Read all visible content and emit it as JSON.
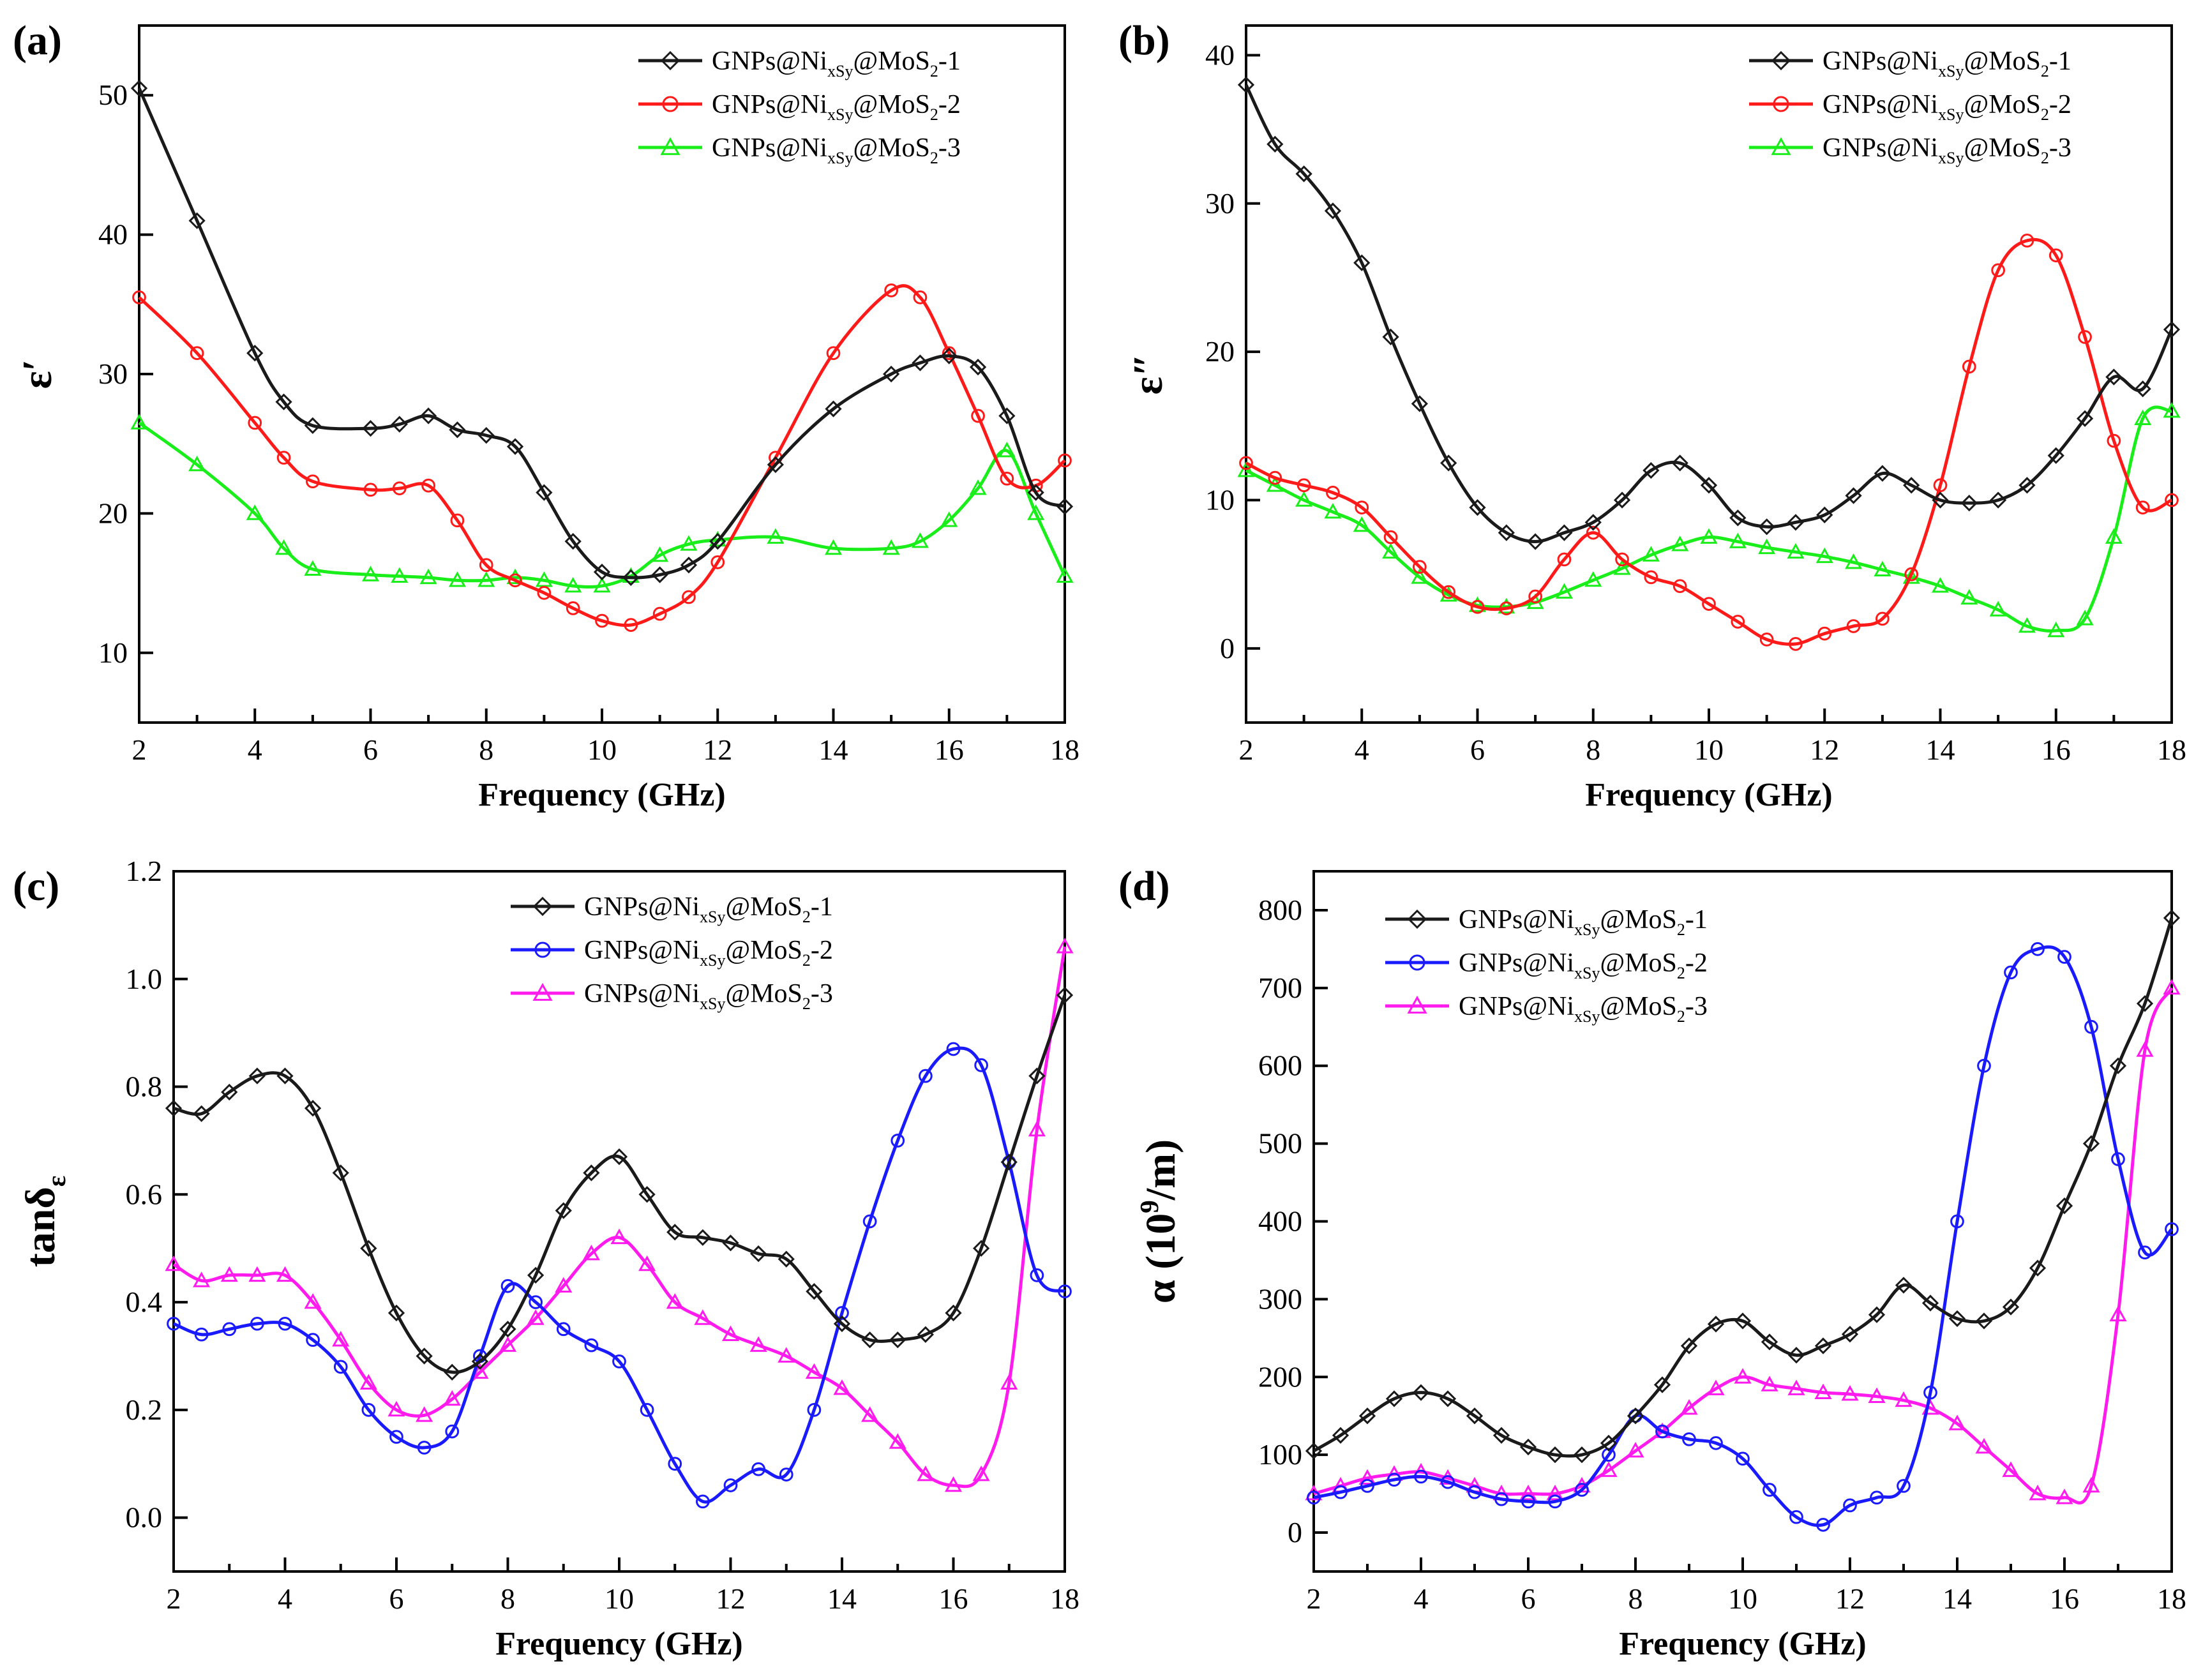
{
  "figure": {
    "panels": [
      {
        "id": "a",
        "label": "(a)",
        "ylabel": "ε′",
        "xlabel": "Frequency (GHz)",
        "legend": [
          "GNPs@Ni_xS_y@MoS_2-1",
          "GNPs@Ni_xS_y@MoS_2-2",
          "GNPs@Ni_xS_y@MoS_2-3"
        ],
        "colors": [
          "#1a1a1a",
          "#ff1a1a",
          "#1aee1a"
        ],
        "markers": [
          "diamond",
          "circle",
          "triangle"
        ]
      },
      {
        "id": "b",
        "label": "(b)",
        "ylabel": "ε″",
        "xlabel": "Frequency (GHz)",
        "legend": [
          "GNPs@Ni_xS_y@MoS_2-1",
          "GNPs@Ni_xS_y@MoS_2-2",
          "GNPs@Ni_xS_y@MoS_2-3"
        ],
        "colors": [
          "#1a1a1a",
          "#ff1a1a",
          "#1aee1a"
        ],
        "markers": [
          "diamond",
          "circle",
          "triangle"
        ]
      },
      {
        "id": "c",
        "label": "(c)",
        "ylabel": "tanδ_ε",
        "xlabel": "Frequency (GHz)",
        "legend": [
          "GNPs@Ni_xS_y@MoS_2-1",
          "GNPs@Ni_xS_y@MoS_2-2",
          "GNPs@Ni_xS_y@MoS_2-3"
        ],
        "colors": [
          "#1a1a1a",
          "#1a1aff",
          "#ff1aee"
        ],
        "markers": [
          "diamond",
          "circle",
          "triangle"
        ]
      },
      {
        "id": "d",
        "label": "(d)",
        "ylabel": "α (10^9/m)",
        "xlabel": "Frequency (GHz)",
        "legend": [
          "GNPs@Ni_xS_y@MoS_2-1",
          "GNPs@Ni_xS_y@MoS_2-2",
          "GNPs@Ni_xS_y@MoS_2-3"
        ],
        "colors": [
          "#1a1a1a",
          "#1a1aff",
          "#ff1aee"
        ],
        "markers": [
          "diamond",
          "circle",
          "triangle"
        ]
      }
    ]
  },
  "chart_data": [
    {
      "type": "line",
      "panel": "(a)",
      "title": "",
      "xlabel": "Frequency (GHz)",
      "ylabel": "ε′",
      "xlim": [
        2,
        18
      ],
      "ylim": [
        5,
        55
      ],
      "xticks": [
        2,
        4,
        6,
        8,
        10,
        12,
        14,
        16,
        18
      ],
      "yticks": [
        10,
        20,
        30,
        40,
        50
      ],
      "x": [
        2,
        3,
        4,
        4.5,
        5,
        6,
        6.5,
        7,
        7.5,
        8,
        8.5,
        9,
        9.5,
        10,
        10.5,
        11,
        11.5,
        12,
        13,
        14,
        15,
        15.5,
        16,
        16.5,
        17,
        17.5,
        18
      ],
      "series": [
        {
          "name": "GNPs@NixSy@MoS2-1",
          "values": [
            50.5,
            41,
            31.5,
            28,
            26.3,
            26.1,
            26.4,
            27,
            26,
            25.6,
            24.8,
            21.5,
            18,
            15.8,
            15.4,
            15.6,
            16.3,
            18,
            23.5,
            27.5,
            30,
            30.8,
            31.3,
            30.5,
            27,
            21.5,
            20.5
          ]
        },
        {
          "name": "GNPs@NixSy@MoS2-2",
          "values": [
            35.5,
            31.5,
            26.5,
            24,
            22.3,
            21.7,
            21.8,
            22,
            19.5,
            16.3,
            15.2,
            14.3,
            13.2,
            12.3,
            12,
            12.8,
            14,
            16.5,
            24,
            31.5,
            36,
            35.5,
            31.5,
            27,
            22.5,
            22,
            23.8
          ]
        },
        {
          "name": "GNPs@NixSy@MoS2-3",
          "values": [
            26.5,
            23.5,
            20,
            17.5,
            16,
            15.6,
            15.5,
            15.4,
            15.2,
            15.2,
            15.4,
            15.2,
            14.8,
            14.8,
            15.5,
            17,
            17.8,
            18.1,
            18.3,
            17.5,
            17.5,
            18,
            19.5,
            21.8,
            24.5,
            20,
            15.5
          ]
        }
      ]
    },
    {
      "type": "line",
      "panel": "(b)",
      "title": "",
      "xlabel": "Frequency (GHz)",
      "ylabel": "ε″",
      "xlim": [
        2,
        18
      ],
      "ylim": [
        -5,
        42
      ],
      "xticks": [
        2,
        4,
        6,
        8,
        10,
        12,
        14,
        16,
        18
      ],
      "yticks": [
        0,
        10,
        20,
        30,
        40
      ],
      "x": [
        2,
        2.5,
        3,
        3.5,
        4,
        4.5,
        5,
        5.5,
        6,
        6.5,
        7,
        7.5,
        8,
        8.5,
        9,
        9.5,
        10,
        10.5,
        11,
        11.5,
        12,
        12.5,
        13,
        13.5,
        14,
        14.5,
        15,
        15.5,
        16,
        16.5,
        17,
        17.5,
        18
      ],
      "series": [
        {
          "name": "GNPs@NixSy@MoS2-1",
          "values": [
            38,
            34,
            32,
            29.5,
            26,
            21,
            16.5,
            12.5,
            9.5,
            7.8,
            7.2,
            7.8,
            8.5,
            10,
            12,
            12.5,
            11,
            8.8,
            8.2,
            8.5,
            9,
            10.3,
            11.8,
            11,
            10,
            9.8,
            10,
            11,
            13,
            15.5,
            18.3,
            17.5,
            21.5
          ]
        },
        {
          "name": "GNPs@NixSy@MoS2-2",
          "values": [
            12.5,
            11.5,
            11,
            10.5,
            9.5,
            7.5,
            5.5,
            3.8,
            2.8,
            2.7,
            3.5,
            6,
            7.8,
            6,
            4.8,
            4.2,
            3,
            1.8,
            0.6,
            0.3,
            1,
            1.5,
            2,
            5,
            11,
            19,
            25.5,
            27.5,
            26.5,
            21,
            14,
            9.5,
            10
          ]
        },
        {
          "name": "GNPs@NixSy@MoS2-3",
          "values": [
            12,
            11,
            10,
            9.2,
            8.3,
            6.5,
            4.8,
            3.6,
            2.9,
            2.8,
            3.1,
            3.8,
            4.6,
            5.4,
            6.3,
            7,
            7.5,
            7.2,
            6.8,
            6.5,
            6.2,
            5.8,
            5.3,
            4.8,
            4.2,
            3.4,
            2.6,
            1.5,
            1.2,
            2,
            7.5,
            15.5,
            16
          ]
        }
      ]
    },
    {
      "type": "line",
      "panel": "(c)",
      "title": "",
      "xlabel": "Frequency (GHz)",
      "ylabel": "tanδε",
      "xlim": [
        2,
        18
      ],
      "ylim": [
        -0.1,
        1.2
      ],
      "xticks": [
        2,
        4,
        6,
        8,
        10,
        12,
        14,
        16,
        18
      ],
      "yticks": [
        0.0,
        0.2,
        0.4,
        0.6,
        0.8,
        1.0,
        1.2
      ],
      "x": [
        2,
        2.5,
        3,
        3.5,
        4,
        4.5,
        5,
        5.5,
        6,
        6.5,
        7,
        7.5,
        8,
        8.5,
        9,
        9.5,
        10,
        10.5,
        11,
        11.5,
        12,
        12.5,
        13,
        13.5,
        14,
        14.5,
        15,
        15.5,
        16,
        16.5,
        17,
        17.5,
        18
      ],
      "series": [
        {
          "name": "GNPs@NixSy@MoS2-1",
          "values": [
            0.76,
            0.75,
            0.79,
            0.82,
            0.82,
            0.76,
            0.64,
            0.5,
            0.38,
            0.3,
            0.27,
            0.29,
            0.35,
            0.45,
            0.57,
            0.64,
            0.67,
            0.6,
            0.53,
            0.52,
            0.51,
            0.49,
            0.48,
            0.42,
            0.36,
            0.33,
            0.33,
            0.34,
            0.38,
            0.5,
            0.66,
            0.82,
            0.97
          ]
        },
        {
          "name": "GNPs@NixSy@MoS2-2",
          "values": [
            0.36,
            0.34,
            0.35,
            0.36,
            0.36,
            0.33,
            0.28,
            0.2,
            0.15,
            0.13,
            0.16,
            0.3,
            0.43,
            0.4,
            0.35,
            0.32,
            0.29,
            0.2,
            0.1,
            0.03,
            0.06,
            0.09,
            0.08,
            0.2,
            0.38,
            0.55,
            0.7,
            0.82,
            0.87,
            0.84,
            0.66,
            0.45,
            0.42
          ]
        },
        {
          "name": "GNPs@NixSy@MoS2-3",
          "values": [
            0.47,
            0.44,
            0.45,
            0.45,
            0.45,
            0.4,
            0.33,
            0.25,
            0.2,
            0.19,
            0.22,
            0.27,
            0.32,
            0.37,
            0.43,
            0.49,
            0.52,
            0.47,
            0.4,
            0.37,
            0.34,
            0.32,
            0.3,
            0.27,
            0.24,
            0.19,
            0.14,
            0.08,
            0.06,
            0.08,
            0.25,
            0.72,
            1.06
          ]
        }
      ]
    },
    {
      "type": "line",
      "panel": "(d)",
      "title": "",
      "xlabel": "Frequency (GHz)",
      "ylabel": "α (10^9/m)",
      "xlim": [
        2,
        18
      ],
      "ylim": [
        -50,
        850
      ],
      "xticks": [
        2,
        4,
        6,
        8,
        10,
        12,
        14,
        16,
        18
      ],
      "yticks": [
        0,
        100,
        200,
        300,
        400,
        500,
        600,
        700,
        800
      ],
      "x": [
        2,
        2.5,
        3,
        3.5,
        4,
        4.5,
        5,
        5.5,
        6,
        6.5,
        7,
        7.5,
        8,
        8.5,
        9,
        9.5,
        10,
        10.5,
        11,
        11.5,
        12,
        12.5,
        13,
        13.5,
        14,
        14.5,
        15,
        15.5,
        16,
        16.5,
        17,
        17.5,
        18
      ],
      "series": [
        {
          "name": "GNPs@NixSy@MoS2-1",
          "values": [
            105,
            125,
            150,
            172,
            180,
            172,
            150,
            125,
            110,
            100,
            100,
            115,
            150,
            190,
            240,
            268,
            272,
            245,
            228,
            240,
            255,
            280,
            318,
            295,
            275,
            272,
            290,
            340,
            420,
            500,
            600,
            680,
            790
          ]
        },
        {
          "name": "GNPs@NixSy@MoS2-2",
          "values": [
            45,
            52,
            60,
            68,
            72,
            65,
            52,
            43,
            40,
            40,
            55,
            100,
            150,
            130,
            120,
            115,
            95,
            55,
            20,
            10,
            35,
            45,
            60,
            180,
            400,
            600,
            720,
            750,
            740,
            650,
            480,
            360,
            390
          ]
        },
        {
          "name": "GNPs@NixSy@MoS2-3",
          "values": [
            50,
            60,
            70,
            75,
            78,
            70,
            60,
            50,
            50,
            50,
            60,
            80,
            105,
            130,
            160,
            185,
            200,
            190,
            185,
            180,
            178,
            175,
            170,
            160,
            140,
            110,
            80,
            50,
            45,
            60,
            280,
            620,
            700
          ]
        }
      ]
    }
  ]
}
